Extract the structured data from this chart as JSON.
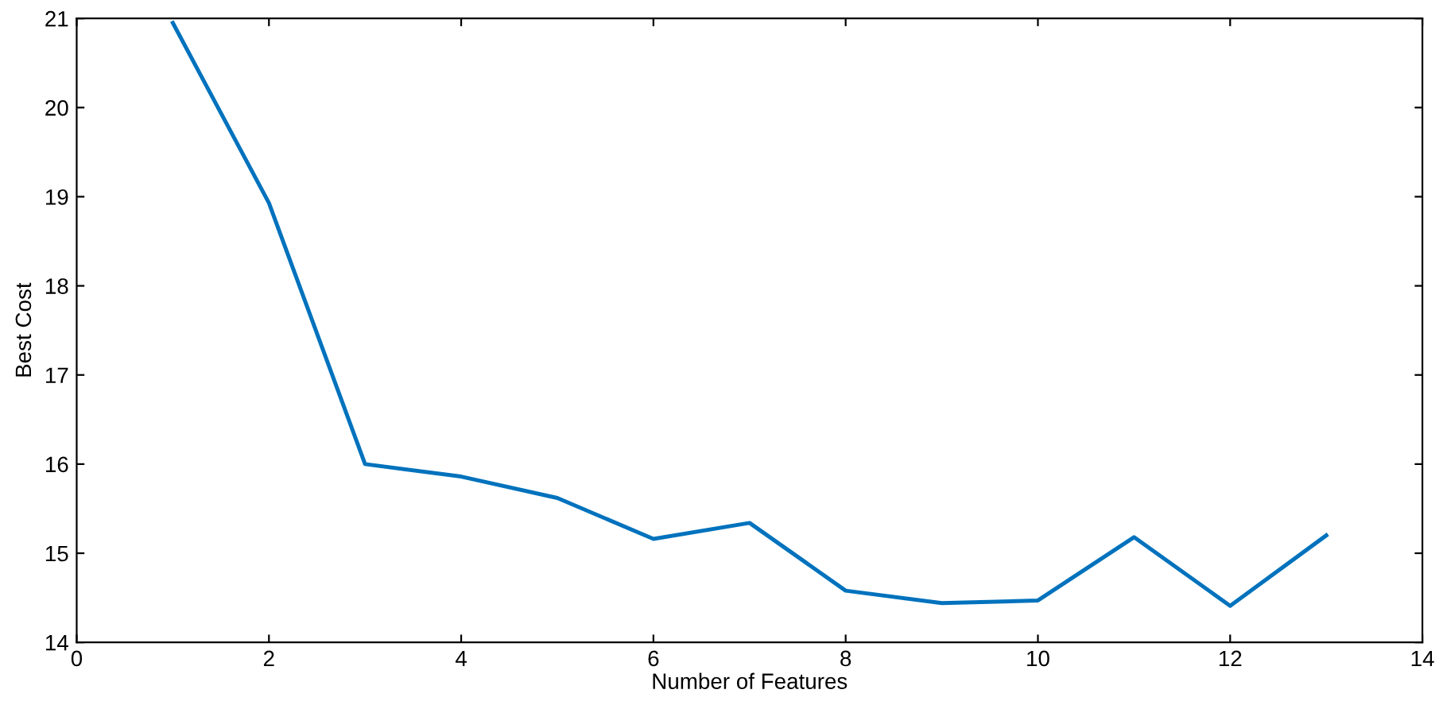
{
  "chart_data": {
    "type": "line",
    "xlabel": "Number of Features",
    "ylabel": "Best Cost",
    "x": [
      1,
      2,
      3,
      4,
      5,
      6,
      7,
      8,
      9,
      10,
      11,
      12,
      13
    ],
    "series": [
      {
        "color": "#0072bd",
        "values": [
          20.95,
          18.93,
          16.0,
          15.86,
          15.62,
          15.16,
          15.34,
          14.58,
          14.44,
          14.47,
          15.18,
          14.41,
          15.2
        ]
      }
    ],
    "xlim": [
      0,
      14
    ],
    "xticks": [
      0,
      2,
      4,
      6,
      8,
      10,
      12,
      14
    ],
    "ylim": [
      14,
      21
    ],
    "yticks": [
      14,
      15,
      16,
      17,
      18,
      19,
      20,
      21
    ],
    "grid": false,
    "legend": false,
    "marker": "none",
    "line_style": "solid"
  }
}
